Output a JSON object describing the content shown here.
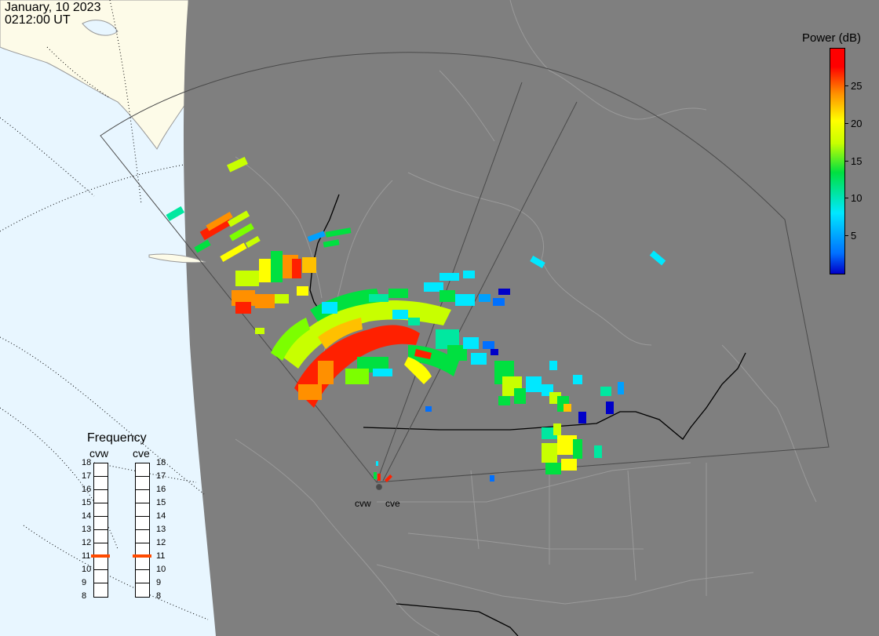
{
  "header": {
    "date": "January, 10 2023",
    "time": "0212:00 UT"
  },
  "power_legend": {
    "title": "Power (dB)",
    "ticks": [
      {
        "value": 5,
        "label": "5"
      },
      {
        "value": 10,
        "label": "10"
      },
      {
        "value": 15,
        "label": "15"
      },
      {
        "value": 20,
        "label": "20"
      },
      {
        "value": 25,
        "label": "25"
      }
    ],
    "colors": [
      "#0000c8",
      "#0070ff",
      "#00e8ff",
      "#00e040",
      "#c8ff00",
      "#ffff00",
      "#ff9000",
      "#ff0000"
    ]
  },
  "frequency": {
    "title": "Frequency",
    "radars": [
      {
        "name": "cvw",
        "selected_mhz": 11
      },
      {
        "name": "cve",
        "selected_mhz": 11
      }
    ],
    "scale": [
      "18",
      "17",
      "16",
      "15",
      "14",
      "13",
      "12",
      "11",
      "10",
      "9",
      "8"
    ],
    "marker_color": "#ff4a00"
  },
  "sites": [
    {
      "name": "cvw"
    },
    {
      "name": "cve"
    }
  ],
  "map_colors": {
    "night": "#7f7f7f",
    "ocean_day": "#e8f6ff",
    "land_day": "#fdfbe8",
    "coast": "#9a9a9a",
    "border": "#000000",
    "fov": "#4a4a4a"
  }
}
